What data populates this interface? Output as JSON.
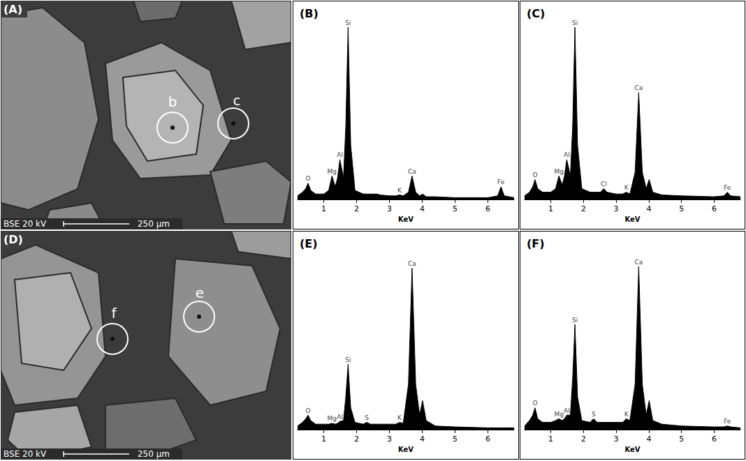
{
  "images": [
    {
      "letter": "(A)",
      "detector": "BSE 20 kV",
      "scale_bar": "250 µm",
      "spots": [
        "b",
        "c"
      ]
    },
    {
      "letter": "(D)",
      "detector": "BSE 20 kV",
      "scale_bar": "250 µm",
      "spots": [
        "f",
        "e"
      ]
    }
  ],
  "chart_data": [
    {
      "type": "line",
      "title": "(B)",
      "xlabel": "KeV",
      "color": "#000000",
      "xlim": [
        0.2,
        6.8
      ],
      "xticks": [
        1,
        2,
        3,
        4,
        5,
        6
      ],
      "ylim": [
        0,
        100
      ],
      "tick_labels": "x",
      "x": [
        0.2,
        0.35,
        0.45,
        0.52,
        0.6,
        0.75,
        1.0,
        1.15,
        1.25,
        1.35,
        1.42,
        1.49,
        1.6,
        1.67,
        1.74,
        1.82,
        1.95,
        2.2,
        2.31,
        2.42,
        2.52,
        2.62,
        2.72,
        3.0,
        3.2,
        3.31,
        3.42,
        3.58,
        3.69,
        3.8,
        3.92,
        4.01,
        4.12,
        4.4,
        5.0,
        6.0,
        6.3,
        6.4,
        6.5,
        6.8
      ],
      "values": [
        2,
        4,
        6,
        9,
        5,
        3,
        3,
        5,
        13,
        7,
        12,
        22,
        12,
        40,
        95,
        30,
        5,
        3,
        3,
        3,
        3,
        3,
        2.5,
        2,
        2,
        2.5,
        2,
        4,
        13,
        4,
        2,
        3,
        1.5,
        1.5,
        1,
        1,
        2,
        7,
        2,
        1
      ],
      "annotations": [
        {
          "text": "O",
          "x": 0.52,
          "y": 9
        },
        {
          "text": "Mg",
          "x": 1.25,
          "y": 13
        },
        {
          "text": "Al",
          "x": 1.49,
          "y": 22
        },
        {
          "text": "Si",
          "x": 1.74,
          "y": 95
        },
        {
          "text": "K",
          "x": 3.31,
          "y": 2.5
        },
        {
          "text": "Ca",
          "x": 3.69,
          "y": 13
        },
        {
          "text": "Fe",
          "x": 6.4,
          "y": 7
        }
      ]
    },
    {
      "type": "line",
      "title": "(C)",
      "xlabel": "KeV",
      "color": "#000000",
      "xlim": [
        0.2,
        6.8
      ],
      "xticks": [
        1,
        2,
        3,
        4,
        5,
        6
      ],
      "ylim": [
        0,
        100
      ],
      "tick_labels": "x",
      "x": [
        0.2,
        0.35,
        0.45,
        0.52,
        0.6,
        0.75,
        1.0,
        1.15,
        1.25,
        1.35,
        1.42,
        1.49,
        1.6,
        1.67,
        1.74,
        1.82,
        1.95,
        2.2,
        2.31,
        2.42,
        2.52,
        2.62,
        2.72,
        3.0,
        3.2,
        3.31,
        3.42,
        3.58,
        3.69,
        3.8,
        3.92,
        4.01,
        4.12,
        4.4,
        5.0,
        6.0,
        6.3,
        6.4,
        6.5,
        6.8
      ],
      "values": [
        2,
        4,
        7,
        11,
        6,
        4,
        4,
        6,
        13,
        8,
        13,
        22,
        13,
        40,
        95,
        30,
        6,
        4,
        4,
        4,
        4,
        6,
        4,
        3,
        3,
        4,
        3,
        15,
        59,
        15,
        6,
        11,
        4,
        2.5,
        2,
        1.5,
        2,
        4,
        2,
        1.5
      ],
      "annotations": [
        {
          "text": "O",
          "x": 0.52,
          "y": 11
        },
        {
          "text": "Mg",
          "x": 1.25,
          "y": 13
        },
        {
          "text": "Al",
          "x": 1.49,
          "y": 22
        },
        {
          "text": "Si",
          "x": 1.74,
          "y": 95
        },
        {
          "text": "Cl",
          "x": 2.62,
          "y": 6
        },
        {
          "text": "K",
          "x": 3.31,
          "y": 4
        },
        {
          "text": "Ca",
          "x": 3.69,
          "y": 59
        },
        {
          "text": "Fe",
          "x": 6.4,
          "y": 4
        }
      ]
    },
    {
      "type": "line",
      "title": "(E)",
      "xlabel": "KeV",
      "color": "#000000",
      "xlim": [
        0.2,
        6.8
      ],
      "xticks": [
        1,
        2,
        3,
        4,
        5,
        6
      ],
      "ylim": [
        0,
        100
      ],
      "tick_labels": "x",
      "x": [
        0.2,
        0.35,
        0.45,
        0.52,
        0.6,
        0.75,
        1.0,
        1.15,
        1.25,
        1.35,
        1.42,
        1.49,
        1.6,
        1.67,
        1.74,
        1.82,
        1.95,
        2.2,
        2.31,
        2.42,
        2.52,
        2.62,
        2.72,
        3.0,
        3.2,
        3.31,
        3.42,
        3.58,
        3.69,
        3.8,
        3.92,
        4.01,
        4.12,
        4.4,
        5.0,
        6.0,
        6.3,
        6.4,
        6.5,
        6.8
      ],
      "values": [
        2,
        4,
        6,
        8,
        5,
        3,
        3,
        3,
        3.5,
        3,
        3.5,
        4.5,
        5,
        18,
        36,
        12,
        4,
        3,
        4,
        3,
        3,
        3,
        3,
        3,
        3,
        4,
        3.5,
        25,
        89,
        25,
        8,
        16,
        5,
        2,
        1.5,
        1,
        1,
        1,
        1,
        1
      ],
      "annotations": [
        {
          "text": "O",
          "x": 0.52,
          "y": 8
        },
        {
          "text": "Mg",
          "x": 1.25,
          "y": 3.5
        },
        {
          "text": "Al",
          "x": 1.49,
          "y": 4.5
        },
        {
          "text": "Si",
          "x": 1.74,
          "y": 36
        },
        {
          "text": "S",
          "x": 2.31,
          "y": 4
        },
        {
          "text": "K",
          "x": 3.31,
          "y": 4
        },
        {
          "text": "Ca",
          "x": 3.69,
          "y": 89
        }
      ]
    },
    {
      "type": "line",
      "title": "(F)",
      "xlabel": "KeV",
      "color": "#000000",
      "xlim": [
        0.2,
        6.8
      ],
      "xticks": [
        1,
        2,
        3,
        4,
        5,
        6
      ],
      "ylim": [
        0,
        100
      ],
      "tick_labels": "x",
      "x": [
        0.2,
        0.35,
        0.45,
        0.52,
        0.6,
        0.75,
        1.0,
        1.15,
        1.25,
        1.35,
        1.42,
        1.49,
        1.6,
        1.67,
        1.74,
        1.82,
        1.95,
        2.2,
        2.31,
        2.42,
        2.52,
        2.62,
        2.72,
        3.0,
        3.2,
        3.31,
        3.42,
        3.58,
        3.69,
        3.8,
        3.92,
        4.01,
        4.12,
        4.4,
        5.0,
        6.0,
        6.3,
        6.4,
        6.5,
        6.8
      ],
      "values": [
        2,
        5,
        8,
        12,
        6,
        4,
        4,
        5,
        6,
        5,
        6,
        8,
        8,
        28,
        58,
        18,
        5,
        4,
        6,
        4,
        4,
        4,
        4,
        4,
        4,
        6,
        5,
        25,
        90,
        25,
        8,
        16,
        5,
        3,
        2,
        1.5,
        1.5,
        2,
        1.5,
        1
      ],
      "annotations": [
        {
          "text": "O",
          "x": 0.52,
          "y": 12
        },
        {
          "text": "Mg",
          "x": 1.25,
          "y": 6
        },
        {
          "text": "Al",
          "x": 1.49,
          "y": 8
        },
        {
          "text": "Si",
          "x": 1.74,
          "y": 58
        },
        {
          "text": "S",
          "x": 2.31,
          "y": 6
        },
        {
          "text": "K",
          "x": 3.31,
          "y": 6
        },
        {
          "text": "Ca",
          "x": 3.69,
          "y": 90
        },
        {
          "text": "Fe",
          "x": 6.4,
          "y": 2
        }
      ]
    }
  ]
}
